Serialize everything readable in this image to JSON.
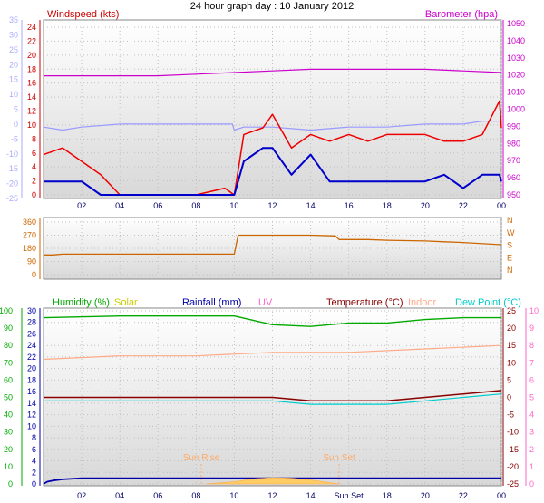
{
  "title": "24 hour graph day : 10 January 2012",
  "x_ticks": [
    "02",
    "04",
    "06",
    "08",
    "10",
    "12",
    "14",
    "16",
    "18",
    "20",
    "22",
    "00"
  ],
  "bottom_x_ticks": [
    "02",
    "04",
    "06",
    "08",
    "10",
    "12",
    "14",
    "Sun Set",
    "18",
    "20",
    "22",
    "00"
  ],
  "colors": {
    "wind_axis": "#cc0000",
    "temp_axis": "#aaaaff",
    "baro": "#cc00cc",
    "grid": "#c0c0c0",
    "panel_bg_top": "#ffffff",
    "panel_bg_bottom": "#d8d8d8",
    "humidity": "#00aa00",
    "solar": "#cccc00",
    "rainfall": "#0000aa",
    "uv": "#ff66cc",
    "temperature": "#880000",
    "indoor": "#ffaa88",
    "dewpoint": "#00cccc",
    "winddir": "#cc6600"
  },
  "chart_data": [
    {
      "type": "line",
      "panel": "wind_baro",
      "title": "24 hour graph day : 10 January 2012",
      "left_outer_axis": {
        "ticks": [
          35,
          30,
          25,
          20,
          15,
          10,
          5,
          0,
          -5,
          -10,
          -15,
          -20,
          -25
        ],
        "labels": [
          "35",
          "30",
          "25",
          "20",
          "15",
          "10",
          "5",
          "0",
          "-5",
          "-10",
          "-15",
          "-20",
          "-25"
        ]
      },
      "left_axis": {
        "label": "Windspeed (kts)",
        "ylim": [
          0,
          25
        ],
        "ticks": [
          "24",
          "22",
          "20",
          "18",
          "16",
          "14",
          "12",
          "10",
          "8",
          "6",
          "4",
          "2",
          "0"
        ]
      },
      "right_axis": {
        "label": "Barometer (hpa)",
        "ylim": [
          945,
          1050
        ],
        "ticks": [
          "1050",
          "1040",
          "1030",
          "1020",
          "1010",
          "1000",
          "990",
          "980",
          "970",
          "960",
          "950"
        ]
      },
      "x_hours": [
        0,
        24
      ],
      "series": [
        {
          "name": "Barometer (hpa)",
          "axis": "right",
          "x": [
            0,
            2,
            4,
            6,
            8,
            10,
            12,
            14,
            16,
            18,
            20,
            22,
            24
          ],
          "values": [
            1018,
            1018,
            1018,
            1018,
            1019,
            1020,
            1021,
            1022,
            1022,
            1022,
            1022,
            1021,
            1020
          ]
        },
        {
          "name": "Temperature",
          "axis": "outer_left",
          "x": [
            0,
            1,
            2,
            4,
            6,
            8,
            9.9,
            10,
            10.5,
            12,
            14,
            16,
            18,
            20,
            22,
            23,
            24
          ],
          "values": [
            -1,
            -2,
            -1,
            0,
            0,
            0,
            0,
            -2,
            -1,
            -1,
            -2,
            -1,
            -1,
            0,
            0,
            1,
            1
          ]
        },
        {
          "name": "Wind gust",
          "axis": "left",
          "x": [
            0,
            1,
            2,
            3,
            4,
            6,
            8,
            9.5,
            10,
            10.5,
            11.5,
            12,
            13,
            14,
            15,
            16,
            17,
            18,
            19,
            20,
            21,
            22,
            23,
            23.9,
            24
          ],
          "values": [
            6,
            7,
            5,
            3,
            0,
            0,
            0,
            1,
            0,
            9,
            10,
            12,
            7,
            9,
            8,
            9,
            8,
            9,
            9,
            9,
            8,
            8,
            9,
            14,
            10
          ]
        },
        {
          "name": "Wind speed",
          "axis": "left",
          "x": [
            0,
            1,
            2,
            3,
            4,
            6,
            8,
            9.5,
            10,
            10.5,
            11.5,
            12,
            13,
            14,
            15,
            16,
            17,
            18,
            19,
            20,
            21,
            22,
            23,
            23.9,
            24
          ],
          "values": [
            2,
            2,
            2,
            0,
            0,
            0,
            0,
            0,
            0,
            5,
            7,
            7,
            3,
            6,
            2,
            2,
            2,
            2,
            2,
            2,
            3,
            1,
            3,
            3,
            2
          ]
        }
      ]
    },
    {
      "type": "line",
      "panel": "wind_direction",
      "left_axis": {
        "ylim": [
          0,
          360
        ],
        "ticks": [
          "360",
          "270",
          "180",
          "90",
          "0"
        ]
      },
      "right_axis": {
        "labels": [
          "N",
          "W",
          "S",
          "E",
          "N"
        ]
      },
      "series": [
        {
          "name": "Wind direction",
          "x": [
            0,
            0.5,
            1,
            9.9,
            10,
            10.2,
            12,
            14,
            15.3,
            15.5,
            17,
            18,
            20,
            21,
            22,
            24
          ],
          "values": [
            135,
            135,
            140,
            140,
            140,
            270,
            270,
            270,
            265,
            240,
            240,
            235,
            230,
            225,
            220,
            205
          ]
        }
      ]
    },
    {
      "type": "line",
      "panel": "multi",
      "legend": [
        "Humidity (%)",
        "Solar",
        "Rainfall (mm)",
        "UV",
        "Temperature (°C)",
        "Indoor",
        "Dew Point (°C)"
      ],
      "left_outer_axis": {
        "ylim": [
          0,
          100
        ],
        "ticks": [
          "100",
          "90",
          "80",
          "70",
          "60",
          "50",
          "40",
          "30",
          "20",
          "10",
          "0"
        ]
      },
      "left_axis": {
        "ylim": [
          0,
          30
        ],
        "ticks": [
          "30",
          "28",
          "26",
          "24",
          "22",
          "20",
          "18",
          "16",
          "14",
          "12",
          "10",
          "8",
          "6",
          "4",
          "2",
          "0"
        ]
      },
      "right_axis": {
        "ylim": [
          -25,
          25
        ],
        "ticks": [
          "25",
          "20",
          "15",
          "10",
          "5",
          "0",
          "-5",
          "-10",
          "-15",
          "-20",
          "-25"
        ]
      },
      "right_outer_axis": {
        "ylim": [
          -10,
          10
        ],
        "ticks": [
          "10",
          "9",
          "8",
          "7",
          "6",
          "5",
          "4",
          "3",
          "2",
          "1",
          "0"
        ]
      },
      "annotations": [
        "Sun Rise",
        "Sun Set"
      ],
      "series": [
        {
          "name": "Humidity (%)",
          "axis": "outer_left",
          "x": [
            0,
            4,
            8,
            10,
            12,
            14,
            16,
            18,
            20,
            22,
            24
          ],
          "values": [
            96,
            97,
            97,
            97,
            92,
            91,
            93,
            93,
            95,
            96,
            96
          ]
        },
        {
          "name": "Indoor",
          "axis": "right",
          "x": [
            0,
            4,
            8,
            12,
            16,
            20,
            24
          ],
          "values": [
            11,
            12,
            12,
            13,
            13,
            14,
            15
          ]
        },
        {
          "name": "Temperature (°C)",
          "axis": "right",
          "x": [
            0,
            2,
            4,
            6,
            8,
            10,
            12,
            14,
            16,
            18,
            20,
            22,
            24
          ],
          "values": [
            0,
            0,
            0,
            0,
            0,
            0,
            0,
            -1,
            -1,
            -1,
            0,
            1,
            2
          ]
        },
        {
          "name": "Dew Point (°C)",
          "axis": "right",
          "x": [
            0,
            2,
            4,
            6,
            8,
            10,
            12,
            14,
            16,
            18,
            20,
            22,
            24
          ],
          "values": [
            -1,
            -1,
            -1,
            -1,
            -1,
            -1,
            -1,
            -2,
            -2,
            -2,
            -1,
            0,
            1
          ]
        },
        {
          "name": "Rainfall (mm)",
          "axis": "left",
          "x": [
            0,
            0.2,
            0.5,
            1,
            2,
            4,
            6,
            8,
            10,
            12,
            14,
            16,
            18,
            20,
            22,
            24
          ],
          "values": [
            0,
            0.4,
            0.6,
            0.8,
            1,
            1,
            1,
            1,
            1,
            1,
            1,
            1,
            1,
            1,
            1,
            1
          ]
        },
        {
          "name": "Solar",
          "axis": "left",
          "x": [
            8.5,
            10,
            11,
            12,
            13,
            14,
            15.5
          ],
          "values": [
            0,
            0.4,
            0.9,
            1.1,
            1,
            0.7,
            0
          ]
        }
      ]
    }
  ]
}
